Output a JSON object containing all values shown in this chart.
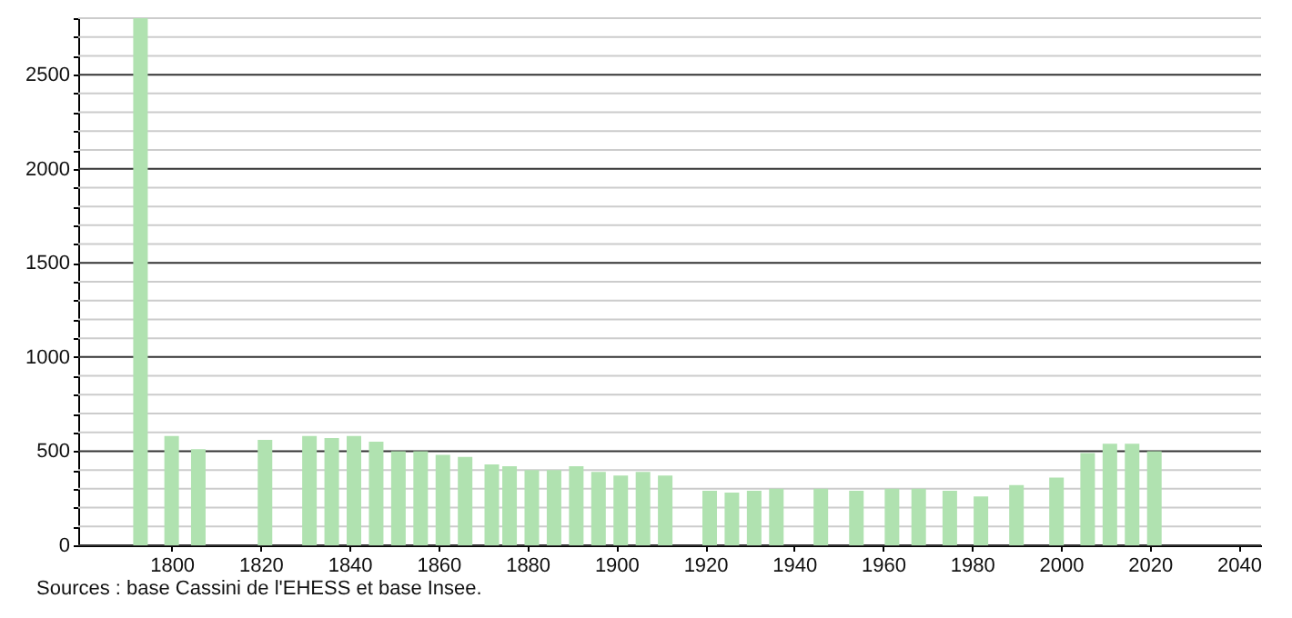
{
  "chart_data": {
    "type": "bar",
    "x": [
      1793,
      1800,
      1806,
      1821,
      1831,
      1836,
      1841,
      1846,
      1851,
      1856,
      1861,
      1866,
      1872,
      1876,
      1881,
      1886,
      1891,
      1896,
      1901,
      1906,
      1911,
      1921,
      1926,
      1931,
      1936,
      1946,
      1954,
      1962,
      1968,
      1975,
      1982,
      1990,
      1999,
      2006,
      2011,
      2016,
      2021
    ],
    "values": [
      2800,
      580,
      510,
      560,
      580,
      570,
      580,
      550,
      500,
      500,
      480,
      470,
      430,
      420,
      400,
      400,
      420,
      390,
      370,
      390,
      370,
      290,
      280,
      290,
      300,
      300,
      290,
      300,
      300,
      290,
      260,
      320,
      360,
      490,
      540,
      540,
      500
    ],
    "color": "#b0e2b0",
    "xlim": [
      1779,
      2045
    ],
    "xticks": [
      1800,
      1820,
      1840,
      1860,
      1880,
      1900,
      1920,
      1940,
      1960,
      1980,
      2000,
      2020,
      2040
    ],
    "ylim": [
      0,
      2800
    ],
    "yticks": [
      0,
      {
        "value": 100,
        "label": null
      },
      {
        "value": 200,
        "label": null
      },
      {
        "value": 300,
        "label": null
      },
      {
        "value": 400,
        "label": null
      },
      500,
      {
        "value": 600,
        "label": null
      },
      {
        "value": 700,
        "label": null
      },
      {
        "value": 800,
        "label": null
      },
      {
        "value": 900,
        "label": null
      },
      1000,
      {
        "value": 1100,
        "label": null
      },
      {
        "value": 1200,
        "label": null
      },
      {
        "value": 1300,
        "label": null
      },
      {
        "value": 1400,
        "label": null
      },
      1500,
      {
        "value": 1600,
        "label": null
      },
      {
        "value": 1700,
        "label": null
      },
      {
        "value": 1800,
        "label": null
      },
      {
        "value": 1900,
        "label": null
      },
      2000,
      {
        "value": 2100,
        "label": null
      },
      {
        "value": 2200,
        "label": null
      },
      {
        "value": 2300,
        "label": null
      },
      {
        "value": 2400,
        "label": null
      },
      2500,
      {
        "value": 2600,
        "label": null
      },
      {
        "value": 2700,
        "label": null
      },
      {
        "value": 2800,
        "label": null
      }
    ],
    "grid": "y",
    "annotations": [
      "Sources : base Cassini de l'EHESS et base Insee."
    ]
  }
}
